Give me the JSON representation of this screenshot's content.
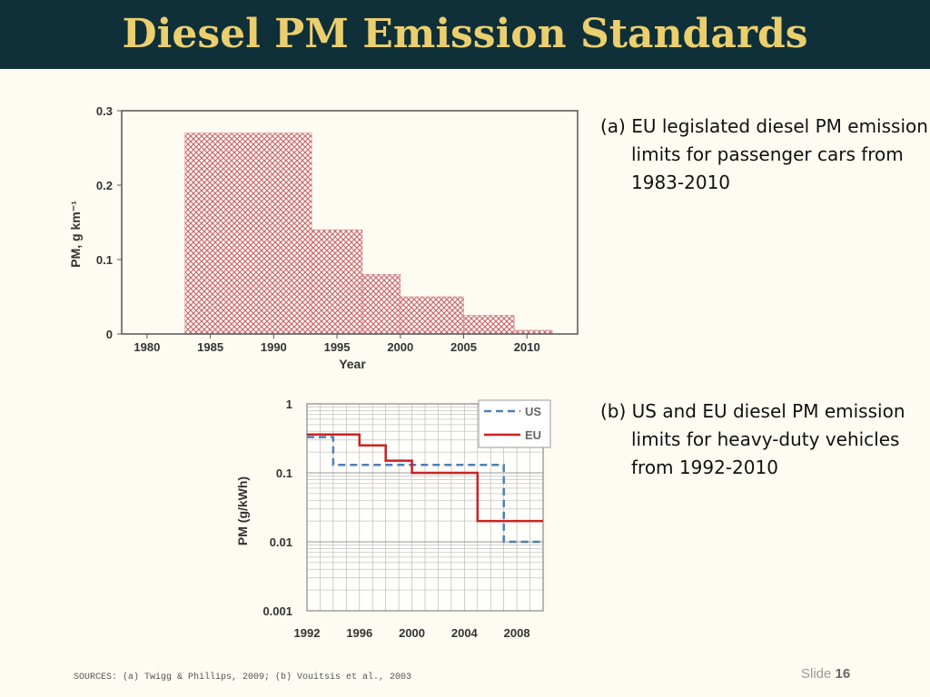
{
  "slide": {
    "title": "Diesel PM Emission Standards",
    "caption_a": "(a) EU legislated diesel PM emission limits for passenger cars from 1983-2010",
    "caption_b": "(b) US and EU diesel PM emission limits for heavy-duty vehicles from 1992-2010",
    "sources": "SOURCES: (a) Twigg & Phillips, 2009; (b) Vouitsis et al., 2003",
    "slide_label": "Slide",
    "slide_number": "16"
  },
  "colors": {
    "header_bg": "#0f3038",
    "title_text": "#ebcf6e",
    "hatch": "#c9606a",
    "us_line": "#4f7fb6",
    "eu_line": "#cc2222"
  },
  "chart_data": [
    {
      "type": "bar",
      "style": "hatched step bars",
      "title": "",
      "xlabel": "Year",
      "ylabel": "PM, g km⁻¹",
      "xlim": [
        1978,
        2014
      ],
      "ylim": [
        0,
        0.3
      ],
      "xticks": [
        1980,
        1985,
        1990,
        1995,
        2000,
        2005,
        2010
      ],
      "yticks": [
        0,
        0.1,
        0.2,
        0.3
      ],
      "ytick_labels": [
        "0",
        "0.1",
        "0.2",
        "0.3"
      ],
      "segments": [
        {
          "start": 1983,
          "end": 1993,
          "value": 0.27
        },
        {
          "start": 1993,
          "end": 1997,
          "value": 0.14
        },
        {
          "start": 1997,
          "end": 2000,
          "value": 0.08
        },
        {
          "start": 2000,
          "end": 2005,
          "value": 0.05
        },
        {
          "start": 2005,
          "end": 2009,
          "value": 0.025
        },
        {
          "start": 2009,
          "end": 2012,
          "value": 0.005
        }
      ]
    },
    {
      "type": "line",
      "style": "step",
      "yscale": "log",
      "title": "",
      "xlabel": "",
      "ylabel": "PM (g/kWh)",
      "xlim": [
        1992,
        2010
      ],
      "ylim": [
        0.001,
        1
      ],
      "xticks": [
        1992,
        1996,
        2000,
        2004,
        2008
      ],
      "yticks": [
        0.001,
        0.01,
        0.1,
        1
      ],
      "ytick_labels": [
        "0.001",
        "0.01",
        "0.1",
        "1"
      ],
      "legend": "top-right",
      "series": [
        {
          "name": "US",
          "dash": "dashed",
          "x": [
            1992,
            1994,
            1994,
            2007,
            2007,
            2010
          ],
          "y": [
            0.33,
            0.33,
            0.13,
            0.13,
            0.01,
            0.01
          ]
        },
        {
          "name": "EU",
          "dash": "solid",
          "x": [
            1992,
            1996,
            1996,
            1998,
            1998,
            2000,
            2000,
            2005,
            2005,
            2010
          ],
          "y": [
            0.36,
            0.36,
            0.25,
            0.25,
            0.15,
            0.15,
            0.1,
            0.1,
            0.02,
            0.02
          ]
        }
      ]
    }
  ]
}
